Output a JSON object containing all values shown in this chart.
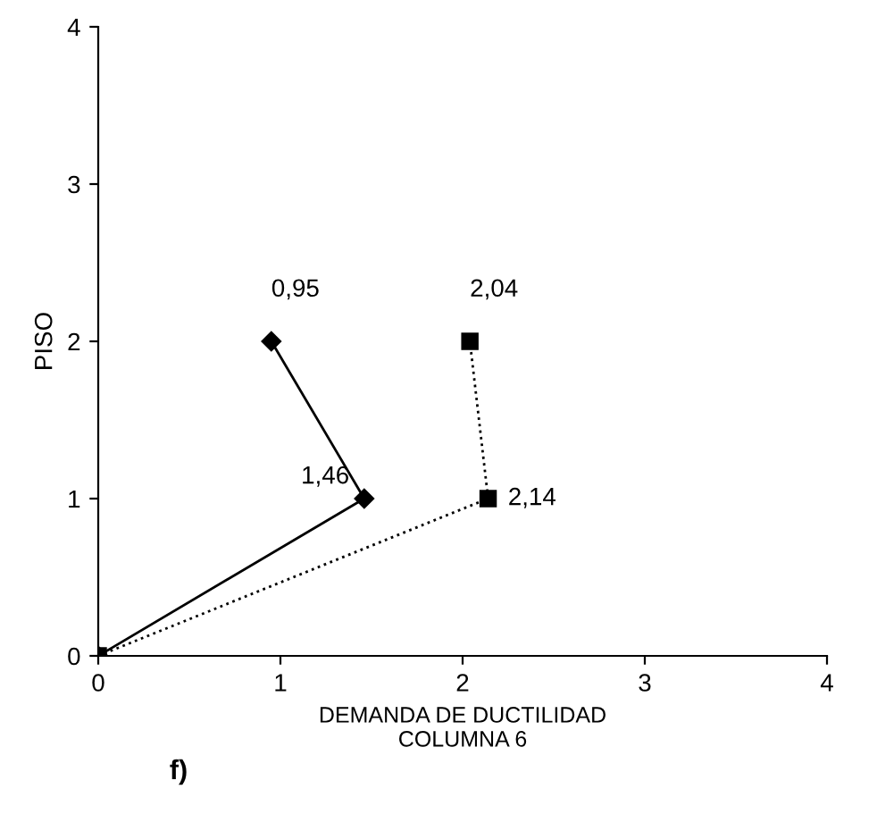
{
  "chart_data": {
    "type": "line",
    "xlabel": "DEMANDA DE DUCTILIDAD\nCOLUMNA 6",
    "ylabel": "PISO",
    "annotations": [
      "f)",
      {
        "text": "1,46",
        "x": 1.46,
        "y": 1
      },
      {
        "text": "0,95",
        "x": 0.95,
        "y": 2
      },
      {
        "text": "2,14",
        "x": 2.14,
        "y": 1
      },
      {
        "text": "2,04",
        "x": 2.04,
        "y": 2
      }
    ],
    "xlim": [
      0,
      4
    ],
    "ylim": [
      0,
      4
    ],
    "xticks": [
      0,
      1,
      2,
      3,
      4
    ],
    "yticks": [
      0,
      1,
      2,
      3,
      4
    ],
    "grid": false,
    "legend": false,
    "series": [
      {
        "color": "#000000",
        "marker": "diamond",
        "line_style": "solid",
        "x": [
          0,
          1.46,
          0.95
        ],
        "values": [
          0,
          1,
          2
        ]
      },
      {
        "color": "#000000",
        "marker": "square",
        "line_style": "dotted",
        "x": [
          0,
          2.14,
          2.04
        ],
        "values": [
          0,
          1,
          2
        ]
      }
    ]
  }
}
